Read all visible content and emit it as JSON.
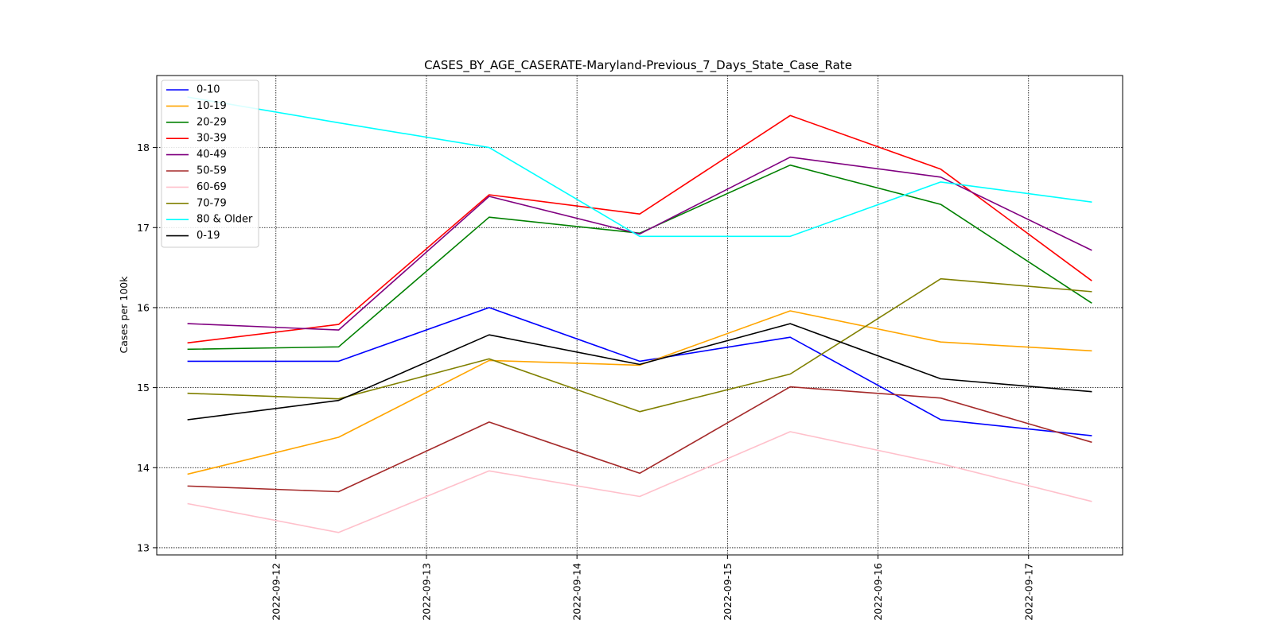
{
  "chart_data": {
    "type": "line",
    "title": "CASES_BY_AGE_CASERATE-Maryland-Previous_7_Days_State_Case_Rate",
    "xlabel": "",
    "ylabel": "Cases per 100k",
    "x": [
      "2022-09-11 10:00",
      "2022-09-12 10:00",
      "2022-09-13 10:00",
      "2022-09-14 10:00",
      "2022-09-15 10:00",
      "2022-09-16 10:00",
      "2022-09-17 10:00"
    ],
    "xlim": [
      "2022-09-11 05:00",
      "2022-09-17 15:00"
    ],
    "ylim": [
      12.91,
      18.9
    ],
    "xticks": [
      "2022-09-12",
      "2022-09-13",
      "2022-09-14",
      "2022-09-15",
      "2022-09-16",
      "2022-09-17"
    ],
    "yticks": [
      "13",
      "14",
      "15",
      "16",
      "17",
      "18"
    ],
    "grid": true,
    "legend_position": "top-left",
    "series": [
      {
        "name": "0-10",
        "color": "#0000ff",
        "values": [
          15.33,
          15.33,
          16.0,
          15.33,
          15.63,
          14.6,
          14.4
        ]
      },
      {
        "name": "10-19",
        "color": "#ffa500",
        "values": [
          13.92,
          14.38,
          15.34,
          15.28,
          15.96,
          15.57,
          15.46
        ]
      },
      {
        "name": "20-29",
        "color": "#008000",
        "values": [
          15.48,
          15.51,
          17.13,
          16.93,
          17.78,
          17.29,
          16.06
        ]
      },
      {
        "name": "30-39",
        "color": "#ff0000",
        "values": [
          15.56,
          15.79,
          17.41,
          17.17,
          18.4,
          17.73,
          16.34
        ]
      },
      {
        "name": "40-49",
        "color": "#800080",
        "values": [
          15.8,
          15.72,
          17.39,
          16.92,
          17.88,
          17.63,
          16.72
        ]
      },
      {
        "name": "50-59",
        "color": "#a52a2a",
        "values": [
          13.77,
          13.7,
          14.57,
          13.93,
          15.01,
          14.87,
          14.32
        ]
      },
      {
        "name": "60-69",
        "color": "#ffc0cb",
        "values": [
          13.55,
          13.19,
          13.96,
          13.64,
          14.45,
          14.05,
          13.58
        ]
      },
      {
        "name": "70-79",
        "color": "#808000",
        "values": [
          14.93,
          14.86,
          15.36,
          14.7,
          15.17,
          16.36,
          16.2
        ]
      },
      {
        "name": "80 & Older",
        "color": "#00ffff",
        "values": [
          18.63,
          18.31,
          18.0,
          16.89,
          16.89,
          17.57,
          17.32
        ]
      },
      {
        "name": "0-19",
        "color": "#000000",
        "values": [
          14.6,
          14.84,
          15.66,
          15.29,
          15.8,
          15.11,
          14.95
        ]
      }
    ]
  }
}
